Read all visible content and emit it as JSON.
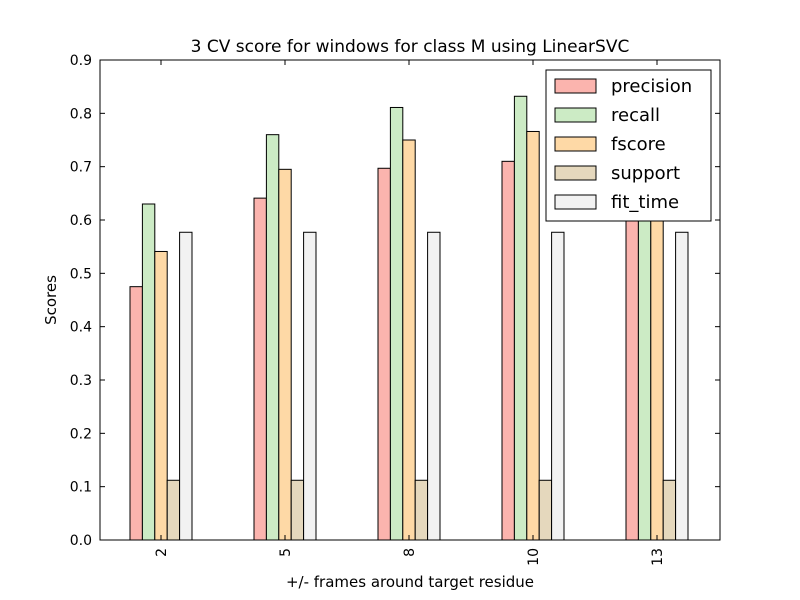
{
  "chart_data": {
    "type": "bar",
    "title": "3 CV score for windows for class M using LinearSVC",
    "xlabel": "+/- frames around target residue",
    "ylabel": "Scores",
    "categories": [
      "2",
      "5",
      "8",
      "10",
      "13"
    ],
    "ylim": [
      0,
      0.9
    ],
    "yticks": [
      "0.0",
      "0.1",
      "0.2",
      "0.3",
      "0.4",
      "0.5",
      "0.6",
      "0.7",
      "0.8",
      "0.9"
    ],
    "ytick_values": [
      0,
      0.1,
      0.2,
      0.3,
      0.4,
      0.5,
      0.6,
      0.7,
      0.8,
      0.9
    ],
    "grid": false,
    "legend_position": "top-right",
    "series": [
      {
        "name": "precision",
        "color": "#fbb4ae",
        "values": [
          0.475,
          0.641,
          0.697,
          0.71,
          0.715
        ]
      },
      {
        "name": "recall",
        "color": "#ccebc5",
        "values": [
          0.63,
          0.76,
          0.811,
          0.832,
          0.84
        ]
      },
      {
        "name": "fscore",
        "color": "#fed9a6",
        "values": [
          0.541,
          0.695,
          0.75,
          0.766,
          0.77
        ]
      },
      {
        "name": "support",
        "color": "#e5d8bd",
        "values": [
          0.112,
          0.112,
          0.112,
          0.112,
          0.112
        ]
      },
      {
        "name": "fit_time",
        "color": "#f2f2f2",
        "values": [
          0.577,
          0.577,
          0.577,
          0.577,
          0.577
        ]
      }
    ]
  }
}
